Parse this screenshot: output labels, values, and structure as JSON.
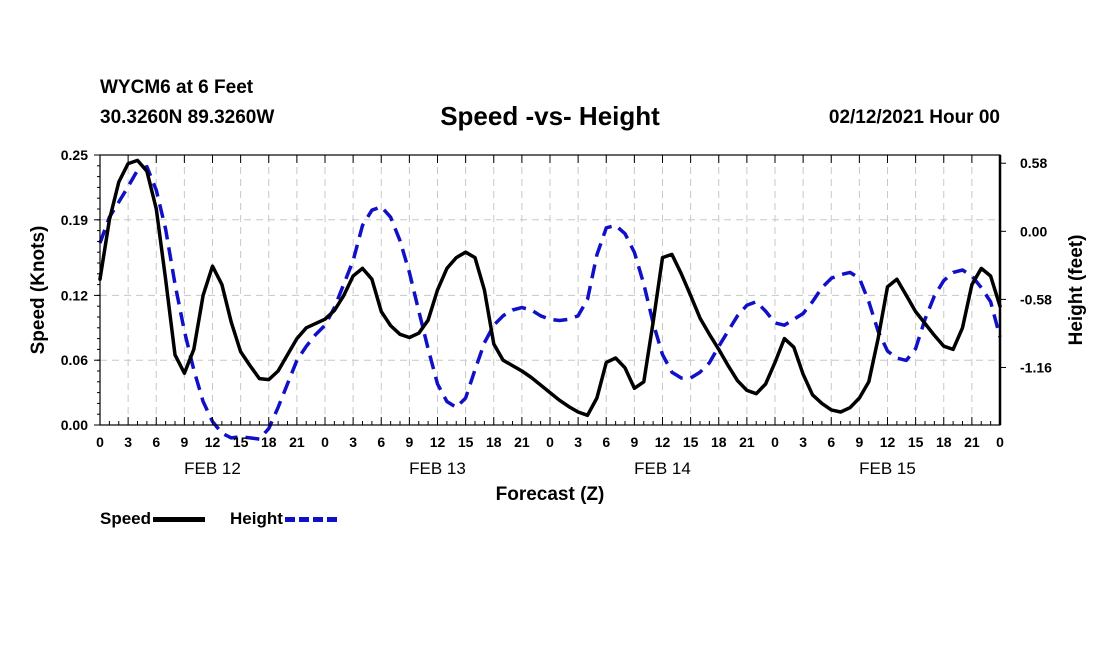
{
  "header": {
    "station": "WYCM6 at 6 Feet",
    "coords": "30.3260N 89.3260W",
    "title": "Speed -vs- Height",
    "timestamp": "02/12/2021 Hour 00"
  },
  "colors": {
    "speed": "#000000",
    "height": "#1010c8",
    "grid": "#c8c8c8"
  },
  "chart_data": {
    "type": "line",
    "title": "Speed -vs- Height",
    "xlabel": "Forecast (Z)",
    "ylabel": "Speed (Knots)",
    "y2label": "Height (feet)",
    "xlim": [
      0,
      96
    ],
    "ylim": [
      0,
      0.25
    ],
    "y2lim": [
      -1.65,
      0.65
    ],
    "x_ticks": [
      0,
      3,
      6,
      9,
      12,
      15,
      18,
      21,
      24,
      27,
      30,
      33,
      36,
      39,
      42,
      45,
      48,
      51,
      54,
      57,
      60,
      63,
      66,
      69,
      72,
      75,
      78,
      81,
      84,
      87,
      90,
      93,
      96
    ],
    "x_tick_labels": [
      "0",
      "3",
      "6",
      "9",
      "12",
      "15",
      "18",
      "21",
      "0",
      "3",
      "6",
      "9",
      "12",
      "15",
      "18",
      "21",
      "0",
      "3",
      "6",
      "9",
      "12",
      "15",
      "18",
      "21",
      "0",
      "3",
      "6",
      "9",
      "12",
      "15",
      "18",
      "21",
      "0"
    ],
    "day_labels": [
      {
        "x": 12,
        "label": "FEB 12"
      },
      {
        "x": 36,
        "label": "FEB 13"
      },
      {
        "x": 60,
        "label": "FEB 14"
      },
      {
        "x": 84,
        "label": "FEB 15"
      }
    ],
    "y_ticks": [
      0.0,
      0.06,
      0.12,
      0.19,
      0.25
    ],
    "y_tick_labels": [
      "0.00",
      "0.06",
      "0.12",
      "0.19",
      "0.25"
    ],
    "y2_ticks": [
      0.58,
      0.0,
      -0.58,
      -1.16
    ],
    "y2_tick_labels": [
      "0.58",
      "0.00",
      "-0.58",
      "-1.16"
    ],
    "series": [
      {
        "name": "Speed",
        "axis": "left",
        "style": "solid",
        "points": [
          [
            0,
            0.135
          ],
          [
            1,
            0.19
          ],
          [
            2,
            0.225
          ],
          [
            3,
            0.242
          ],
          [
            4,
            0.245
          ],
          [
            5,
            0.235
          ],
          [
            6,
            0.2
          ],
          [
            7,
            0.135
          ],
          [
            8,
            0.065
          ],
          [
            9,
            0.048
          ],
          [
            10,
            0.07
          ],
          [
            11,
            0.12
          ],
          [
            12,
            0.147
          ],
          [
            13,
            0.13
          ],
          [
            14,
            0.095
          ],
          [
            15,
            0.068
          ],
          [
            16,
            0.055
          ],
          [
            17,
            0.043
          ],
          [
            18,
            0.042
          ],
          [
            19,
            0.05
          ],
          [
            20,
            0.065
          ],
          [
            21,
            0.08
          ],
          [
            22,
            0.09
          ],
          [
            24,
            0.098
          ],
          [
            25,
            0.106
          ],
          [
            26,
            0.12
          ],
          [
            27,
            0.138
          ],
          [
            28,
            0.145
          ],
          [
            29,
            0.135
          ],
          [
            30,
            0.105
          ],
          [
            31,
            0.092
          ],
          [
            32,
            0.084
          ],
          [
            33,
            0.081
          ],
          [
            34,
            0.085
          ],
          [
            35,
            0.097
          ],
          [
            36,
            0.125
          ],
          [
            37,
            0.145
          ],
          [
            38,
            0.155
          ],
          [
            39,
            0.16
          ],
          [
            40,
            0.155
          ],
          [
            41,
            0.125
          ],
          [
            42,
            0.075
          ],
          [
            43,
            0.06
          ],
          [
            44,
            0.055
          ],
          [
            45,
            0.05
          ],
          [
            46,
            0.044
          ],
          [
            47,
            0.037
          ],
          [
            48,
            0.03
          ],
          [
            49,
            0.023
          ],
          [
            50,
            0.017
          ],
          [
            51,
            0.012
          ],
          [
            52,
            0.009
          ],
          [
            53,
            0.025
          ],
          [
            54,
            0.058
          ],
          [
            55,
            0.062
          ],
          [
            56,
            0.053
          ],
          [
            57,
            0.034
          ],
          [
            58,
            0.04
          ],
          [
            59,
            0.095
          ],
          [
            60,
            0.155
          ],
          [
            61,
            0.158
          ],
          [
            62,
            0.14
          ],
          [
            63,
            0.12
          ],
          [
            64,
            0.099
          ],
          [
            65,
            0.084
          ],
          [
            66,
            0.07
          ],
          [
            67,
            0.055
          ],
          [
            68,
            0.041
          ],
          [
            69,
            0.032
          ],
          [
            70,
            0.029
          ],
          [
            71,
            0.038
          ],
          [
            72,
            0.058
          ],
          [
            73,
            0.08
          ],
          [
            74,
            0.072
          ],
          [
            75,
            0.047
          ],
          [
            76,
            0.028
          ],
          [
            77,
            0.02
          ],
          [
            78,
            0.014
          ],
          [
            79,
            0.012
          ],
          [
            80,
            0.016
          ],
          [
            81,
            0.025
          ],
          [
            82,
            0.04
          ],
          [
            83,
            0.08
          ],
          [
            84,
            0.128
          ],
          [
            85,
            0.135
          ],
          [
            86,
            0.12
          ],
          [
            87,
            0.105
          ],
          [
            88,
            0.094
          ],
          [
            89,
            0.083
          ],
          [
            90,
            0.073
          ],
          [
            91,
            0.07
          ],
          [
            92,
            0.09
          ],
          [
            93,
            0.13
          ],
          [
            94,
            0.145
          ],
          [
            95,
            0.138
          ],
          [
            96,
            0.11
          ]
        ]
      },
      {
        "name": "Height",
        "axis": "right",
        "style": "dashed",
        "points": [
          [
            0,
            -0.1
          ],
          [
            1,
            0.12
          ],
          [
            2,
            0.25
          ],
          [
            3,
            0.38
          ],
          [
            4,
            0.52
          ],
          [
            5,
            0.55
          ],
          [
            6,
            0.35
          ],
          [
            7,
            0.02
          ],
          [
            8,
            -0.45
          ],
          [
            9,
            -0.85
          ],
          [
            10,
            -1.18
          ],
          [
            11,
            -1.45
          ],
          [
            12,
            -1.62
          ],
          [
            13,
            -1.72
          ],
          [
            14,
            -1.76
          ],
          [
            15,
            -1.75
          ],
          [
            16,
            -1.76
          ],
          [
            17,
            -1.77
          ],
          [
            18,
            -1.68
          ],
          [
            19,
            -1.5
          ],
          [
            20,
            -1.3
          ],
          [
            21,
            -1.1
          ],
          [
            22,
            -0.98
          ],
          [
            23,
            -0.88
          ],
          [
            24,
            -0.8
          ],
          [
            25,
            -0.65
          ],
          [
            26,
            -0.45
          ],
          [
            27,
            -0.25
          ],
          [
            28,
            0.05
          ],
          [
            29,
            0.18
          ],
          [
            30,
            0.21
          ],
          [
            31,
            0.12
          ],
          [
            32,
            -0.08
          ],
          [
            33,
            -0.35
          ],
          [
            34,
            -0.68
          ],
          [
            35,
            -1.0
          ],
          [
            36,
            -1.3
          ],
          [
            37,
            -1.45
          ],
          [
            38,
            -1.5
          ],
          [
            39,
            -1.42
          ],
          [
            40,
            -1.18
          ],
          [
            41,
            -0.95
          ],
          [
            42,
            -0.8
          ],
          [
            43,
            -0.72
          ],
          [
            44,
            -0.67
          ],
          [
            45,
            -0.65
          ],
          [
            46,
            -0.67
          ],
          [
            47,
            -0.72
          ],
          [
            48,
            -0.75
          ],
          [
            49,
            -0.76
          ],
          [
            50,
            -0.75
          ],
          [
            51,
            -0.72
          ],
          [
            52,
            -0.58
          ],
          [
            53,
            -0.2
          ],
          [
            54,
            0.03
          ],
          [
            55,
            0.05
          ],
          [
            56,
            -0.02
          ],
          [
            57,
            -0.18
          ],
          [
            58,
            -0.45
          ],
          [
            59,
            -0.78
          ],
          [
            60,
            -1.05
          ],
          [
            61,
            -1.2
          ],
          [
            62,
            -1.25
          ],
          [
            63,
            -1.25
          ],
          [
            64,
            -1.2
          ],
          [
            65,
            -1.12
          ],
          [
            66,
            -0.98
          ],
          [
            67,
            -0.85
          ],
          [
            68,
            -0.72
          ],
          [
            69,
            -0.63
          ],
          [
            70,
            -0.6
          ],
          [
            71,
            -0.68
          ],
          [
            72,
            -0.78
          ],
          [
            73,
            -0.8
          ],
          [
            74,
            -0.75
          ],
          [
            75,
            -0.7
          ],
          [
            76,
            -0.6
          ],
          [
            77,
            -0.48
          ],
          [
            78,
            -0.4
          ],
          [
            79,
            -0.37
          ],
          [
            80,
            -0.35
          ],
          [
            81,
            -0.4
          ],
          [
            82,
            -0.6
          ],
          [
            83,
            -0.85
          ],
          [
            84,
            -1.02
          ],
          [
            85,
            -1.08
          ],
          [
            86,
            -1.1
          ],
          [
            87,
            -1.0
          ],
          [
            88,
            -0.75
          ],
          [
            89,
            -0.55
          ],
          [
            90,
            -0.42
          ],
          [
            91,
            -0.35
          ],
          [
            92,
            -0.33
          ],
          [
            93,
            -0.38
          ],
          [
            94,
            -0.48
          ],
          [
            95,
            -0.6
          ],
          [
            96,
            -0.9
          ]
        ]
      }
    ],
    "legend": [
      {
        "label": "Speed",
        "style": "solid"
      },
      {
        "label": "Height",
        "style": "dashed"
      }
    ],
    "grid": true
  }
}
